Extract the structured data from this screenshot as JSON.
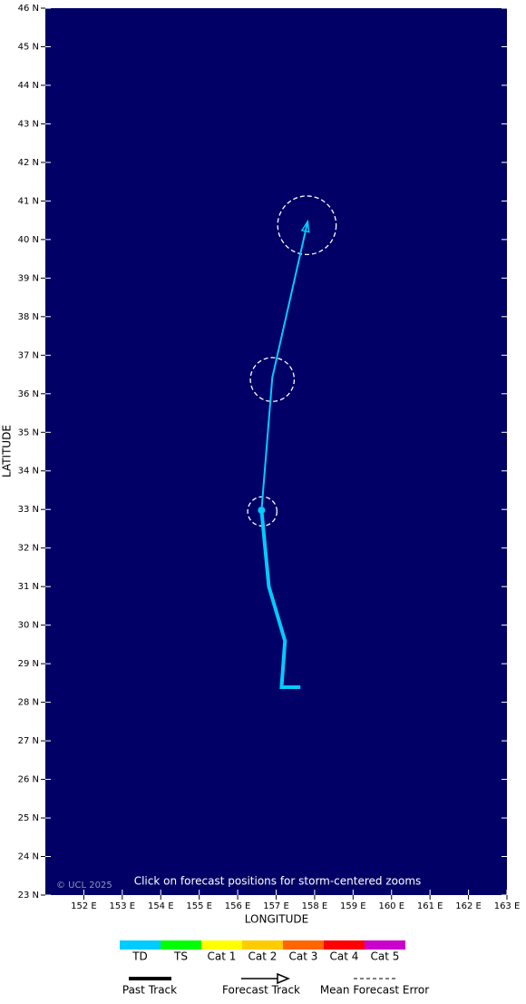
{
  "chart_data": {
    "type": "track",
    "xlabel": "LONGITUDE",
    "ylabel": "LATITUDE",
    "background": "#000066",
    "xlim": [
      151,
      163
    ],
    "ylim": [
      23,
      46
    ],
    "xticks": [
      {
        "value": 152,
        "label": "152 E"
      },
      {
        "value": 153,
        "label": "153 E"
      },
      {
        "value": 154,
        "label": "154 E"
      },
      {
        "value": 155,
        "label": "155 E"
      },
      {
        "value": 156,
        "label": "156 E"
      },
      {
        "value": 157,
        "label": "157 E"
      },
      {
        "value": 158,
        "label": "158 E"
      },
      {
        "value": 159,
        "label": "159 E"
      },
      {
        "value": 160,
        "label": "160 E"
      },
      {
        "value": 161,
        "label": "161 E"
      },
      {
        "value": 162,
        "label": "162 E"
      },
      {
        "value": 163,
        "label": "163 E"
      }
    ],
    "yticks": [
      {
        "value": 23,
        "label": "23 N"
      },
      {
        "value": 24,
        "label": "24 N"
      },
      {
        "value": 25,
        "label": "25 N"
      },
      {
        "value": 26,
        "label": "26 N"
      },
      {
        "value": 27,
        "label": "27 N"
      },
      {
        "value": 28,
        "label": "28 N"
      },
      {
        "value": 29,
        "label": "29 N"
      },
      {
        "value": 30,
        "label": "30 N"
      },
      {
        "value": 31,
        "label": "31 N"
      },
      {
        "value": 32,
        "label": "32 N"
      },
      {
        "value": 33,
        "label": "33 N"
      },
      {
        "value": 34,
        "label": "34 N"
      },
      {
        "value": 35,
        "label": "35 N"
      },
      {
        "value": 36,
        "label": "36 N"
      },
      {
        "value": 37,
        "label": "37 N"
      },
      {
        "value": 38,
        "label": "38 N"
      },
      {
        "value": 39,
        "label": "39 N"
      },
      {
        "value": 40,
        "label": "40 N"
      },
      {
        "value": 41,
        "label": "41 N"
      },
      {
        "value": 42,
        "label": "42 N"
      },
      {
        "value": 43,
        "label": "43 N"
      },
      {
        "value": 44,
        "label": "44 N"
      },
      {
        "value": 45,
        "label": "45 N"
      },
      {
        "value": 46,
        "label": "46 N"
      }
    ],
    "past_track": {
      "name": "Past Track",
      "color": "#00ccff",
      "lon": [
        157.63,
        157.14,
        157.23,
        156.81,
        156.62
      ],
      "lat": [
        28.39,
        28.39,
        29.59,
        31.0,
        32.98
      ]
    },
    "forecast_track": {
      "name": "Forecast Track",
      "color": "#00ccff",
      "lon": [
        156.62,
        156.9,
        157.82
      ],
      "lat": [
        32.98,
        36.42,
        40.47
      ]
    },
    "forecast_error": {
      "name": "Mean Forecast Error",
      "lon": [
        156.64,
        156.9,
        157.8
      ],
      "lat": [
        32.95,
        36.37,
        40.37
      ],
      "radius": [
        0.38,
        0.57,
        0.76
      ]
    },
    "categories": [
      "TD",
      "TS",
      "Cat 1",
      "Cat 2",
      "Cat 3",
      "Cat 4",
      "Cat 5"
    ],
    "category_colors": [
      "#00ccff",
      "#00ff00",
      "#ffff00",
      "#ffcc00",
      "#ff6600",
      "#ff0000",
      "#cc00cc"
    ],
    "annotation": "Click on forecast positions for storm-centered zooms",
    "credit": "© UCL 2025"
  }
}
